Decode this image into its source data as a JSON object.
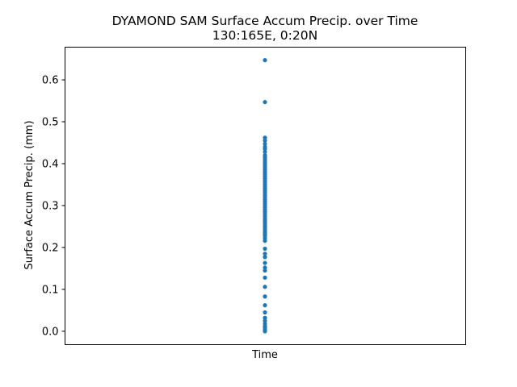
{
  "chart_data": {
    "type": "scatter",
    "title": "DYAMOND SAM Surface Accum Precip. over Time",
    "subtitle": "130:165E, 0:20N",
    "xlabel": "Time",
    "ylabel": "Surface Accum Precip. (mm)",
    "ylim": [
      -0.032,
      0.678
    ],
    "yticks": [
      "0.0",
      "0.1",
      "0.2",
      "0.3",
      "0.4",
      "0.5",
      "0.6"
    ],
    "grid": false,
    "marker_color": "#1f77b4",
    "series": [
      {
        "x_label": "Time",
        "values": [
          0.0,
          0.003,
          0.008,
          0.012,
          0.018,
          0.025,
          0.032,
          0.045,
          0.062,
          0.083,
          0.106,
          0.128,
          0.145,
          0.152,
          0.163,
          0.177,
          0.185,
          0.197,
          0.216,
          0.222,
          0.228,
          0.232,
          0.236,
          0.24,
          0.245,
          0.25,
          0.255,
          0.26,
          0.265,
          0.27,
          0.275,
          0.28,
          0.285,
          0.29,
          0.295,
          0.3,
          0.305,
          0.31,
          0.315,
          0.32,
          0.325,
          0.33,
          0.335,
          0.34,
          0.345,
          0.35,
          0.355,
          0.36,
          0.365,
          0.37,
          0.375,
          0.38,
          0.385,
          0.39,
          0.395,
          0.4,
          0.405,
          0.41,
          0.415,
          0.42,
          0.428,
          0.435,
          0.44,
          0.447,
          0.455,
          0.462,
          0.547,
          0.647
        ]
      }
    ]
  }
}
